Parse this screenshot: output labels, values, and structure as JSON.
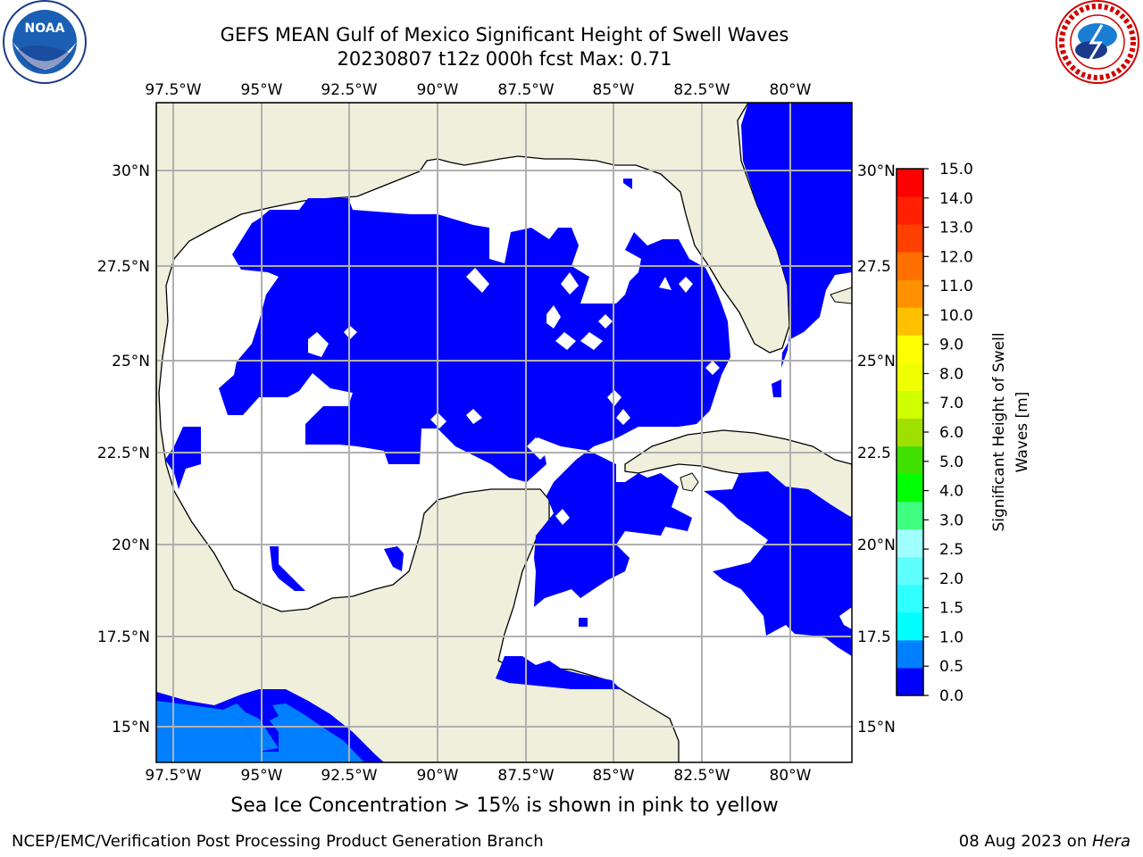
{
  "header": {
    "title_line1": "GEFS MEAN Gulf of Mexico Significant Height of Swell Waves",
    "title_line2": "20230807 t12z 000h fcst   Max: 0.71"
  },
  "logos": {
    "left": {
      "icon": "noaa-logo",
      "text": "NOAA"
    },
    "right": {
      "icon": "national-weather-service-logo"
    }
  },
  "map": {
    "lon_labels": [
      "97.5°W",
      "95°W",
      "92.5°W",
      "90°W",
      "87.5°W",
      "85°W",
      "82.5°W",
      "80°W"
    ],
    "lat_labels": [
      "30°N",
      "27.5°N",
      "25°N",
      "22.5°N",
      "20°N",
      "17.5°N",
      "15°N"
    ],
    "right_lat_labels": [
      "30°N",
      "27.5",
      "25°N",
      "22.5",
      "20°N",
      "17.5",
      "15°N"
    ],
    "colors": {
      "land": "#efefdc",
      "ocean_no_data": "#ffffff",
      "swell_low": "#0000ff",
      "swell_mid": "#0080ff",
      "grid": "#b0b0b0"
    }
  },
  "colorbar": {
    "tick_labels": [
      "0.0",
      "0.5",
      "1.0",
      "1.5",
      "2.0",
      "2.5",
      "3.0",
      "4.0",
      "5.0",
      "6.0",
      "7.0",
      "8.0",
      "9.0",
      "10.0",
      "11.0",
      "12.0",
      "13.0",
      "14.0",
      "15.0"
    ],
    "label_line1": "Significant Height of Swell",
    "label_line2": "Waves [m]",
    "colors": [
      "#0000ff",
      "#0080ff",
      "#00ffff",
      "#30ffff",
      "#60ffff",
      "#a0ffff",
      "#40ff80",
      "#00ff00",
      "#40e000",
      "#a0e000",
      "#d0ff00",
      "#f0ff00",
      "#ffff00",
      "#ffc000",
      "#ff9000",
      "#ff7000",
      "#ff4000",
      "#ff2000",
      "#ff0000"
    ]
  },
  "subtitle": "Sea Ice Concentration > 15% is shown in pink to yellow",
  "footer": {
    "left": "NCEP/EMC/Verification Post Processing Product Generation Branch",
    "right_date": "08 Aug 2023 on ",
    "right_host": "Hera"
  }
}
